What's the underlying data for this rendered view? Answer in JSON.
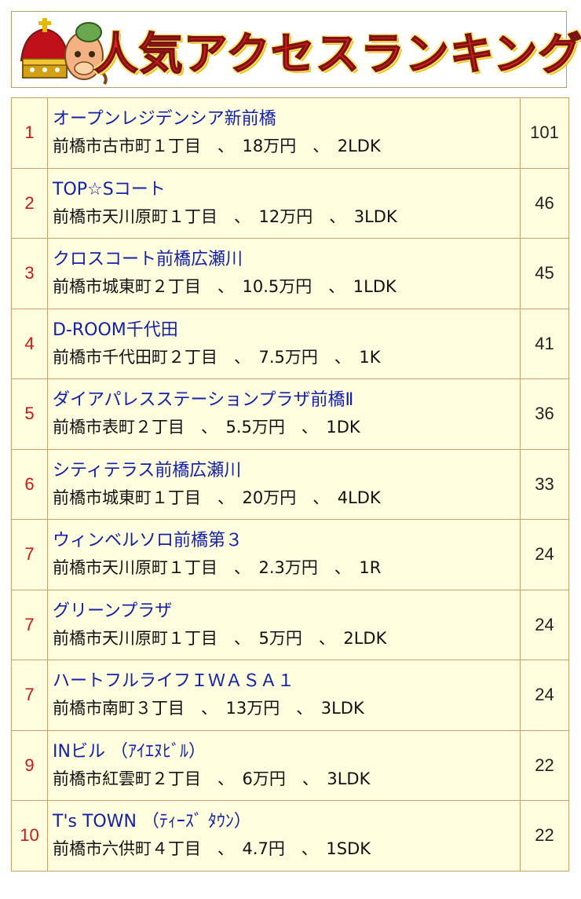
{
  "banner": {
    "title": "人気アクセスランキング",
    "mascot_icon": "crowned-horse-mascot-icon",
    "colors": {
      "title": "#ee1c23",
      "title_outline": "#ffe36e",
      "crown": "#d4a017"
    }
  },
  "ranking": [
    {
      "rank": "1",
      "name": "オープンレジデンシア新前橋",
      "detail": "前橋市古市町１丁目　、　18万円　、　2LDK",
      "count": "101"
    },
    {
      "rank": "2",
      "name": "TOP☆Sコート",
      "detail": "前橋市天川原町１丁目　、　12万円　、　3LDK",
      "count": "46"
    },
    {
      "rank": "3",
      "name": "クロスコート前橋広瀬川",
      "detail": "前橋市城東町２丁目　、　10.5万円　、　1LDK",
      "count": "45"
    },
    {
      "rank": "4",
      "name": "D-ROOM千代田",
      "detail": "前橋市千代田町２丁目　、　7.5万円　、　1K",
      "count": "41"
    },
    {
      "rank": "5",
      "name": "ダイアパレスステーションプラザ前橋Ⅱ",
      "detail": "前橋市表町２丁目　、　5.5万円　、　1DK",
      "count": "36"
    },
    {
      "rank": "6",
      "name": "シティテラス前橋広瀬川",
      "detail": "前橋市城東町１丁目　、　20万円　、　4LDK",
      "count": "33"
    },
    {
      "rank": "7",
      "name": "ウィンベルソロ前橋第３",
      "detail": "前橋市天川原町１丁目　、　2.3万円　、　1R",
      "count": "24"
    },
    {
      "rank": "7",
      "name": "グリーンプラザ",
      "detail": "前橋市天川原町１丁目　、　5万円　、　2LDK",
      "count": "24"
    },
    {
      "rank": "7",
      "name": "ハートフルライフＩＷＡＳＡ１",
      "detail": "前橋市南町３丁目　、　13万円　、　3LDK",
      "count": "24"
    },
    {
      "rank": "9",
      "name": "INビル （ｱｲｴﾇﾋﾞﾙ）",
      "detail": "前橋市紅雲町２丁目　、　6万円　、　3LDK",
      "count": "22"
    },
    {
      "rank": "10",
      "name": "T's TOWN （ﾃｨｰｽﾞ ﾀｳﾝ）",
      "detail": "前橋市六供町４丁目　、　4.7円　、　1SDK",
      "count": "22"
    }
  ]
}
